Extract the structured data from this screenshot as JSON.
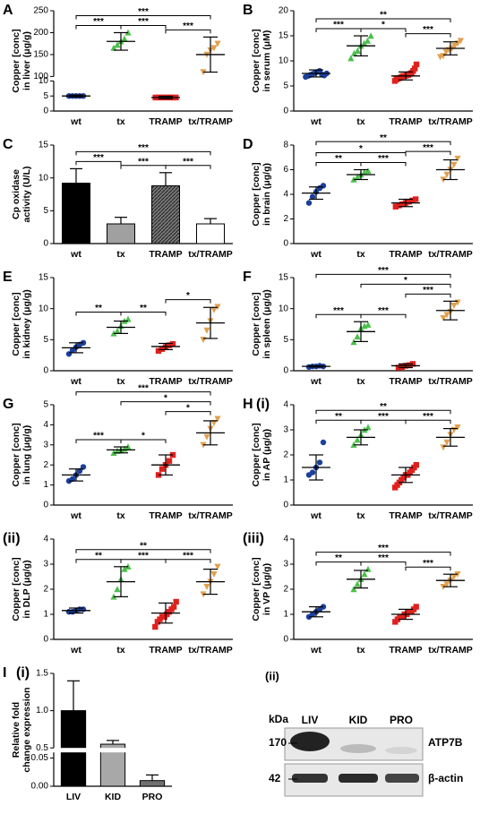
{
  "chart_data": [
    {
      "type": "dot",
      "label": "A",
      "ylabel": [
        "Copper [conc]",
        "in liver (μg/g)"
      ],
      "categories": [
        "wt",
        "tx",
        "TRAMP",
        "tx/TRAMP"
      ],
      "colors": [
        "#1c3f9c",
        "#4cbf4c",
        "#e0201c",
        "#e0a050"
      ],
      "markers": [
        "circle",
        "triangle",
        "square",
        "triangle-down"
      ],
      "points": [
        [
          5,
          5,
          5,
          5,
          5
        ],
        [
          165,
          172,
          180,
          186,
          200
        ],
        [
          4.5,
          4.5,
          4.5,
          4.5,
          4.5,
          4.5,
          4.5,
          4.5
        ],
        [
          110,
          150,
          160,
          165,
          175
        ]
      ],
      "means": [
        5,
        180,
        4.5,
        150
      ],
      "sds": [
        0.3,
        20,
        0.4,
        40
      ],
      "ylim": [
        0,
        250
      ],
      "ysegments": [
        [
          0,
          10
        ],
        [
          100,
          250
        ]
      ],
      "yticks": [
        0,
        5,
        10,
        100,
        150,
        200,
        250
      ],
      "brackets": [
        {
          "pair": [
            "wt",
            "tx"
          ],
          "label": "***"
        },
        {
          "pair": [
            "tx",
            "TRAMP"
          ],
          "label": "***"
        },
        {
          "pair": [
            "TRAMP",
            "tx/TRAMP"
          ],
          "label": "***"
        },
        {
          "pair": [
            "wt",
            "tx/TRAMP"
          ],
          "label": "***"
        }
      ]
    },
    {
      "type": "dot",
      "label": "B",
      "ylabel": [
        "Copper [conc]",
        "in serum (μM)"
      ],
      "categories": [
        "wt",
        "tx",
        "TRAMP",
        "tx/TRAMP"
      ],
      "colors": [
        "#1c3f9c",
        "#4cbf4c",
        "#e0201c",
        "#e0a050"
      ],
      "markers": [
        "circle",
        "triangle",
        "square",
        "triangle-down"
      ],
      "points": [
        [
          6.8,
          7,
          7.2,
          7.4,
          7.6,
          7.8,
          8,
          7.3,
          7.1,
          7.5
        ],
        [
          10.5,
          11.5,
          12,
          13,
          13.5,
          14,
          15
        ],
        [
          6,
          6.3,
          6.5,
          6.6,
          6.8,
          7,
          7,
          7.1,
          7.2,
          7.4,
          7.6,
          8,
          8.5,
          9.3
        ],
        [
          10.8,
          11,
          11.8,
          12.2,
          12.5,
          13,
          13.5,
          14
        ]
      ],
      "means": [
        7.5,
        13,
        7,
        12.5
      ],
      "sds": [
        0.7,
        2,
        0.8,
        1.3
      ],
      "ylim": [
        0,
        20
      ],
      "yticks": [
        0,
        5,
        10,
        15,
        20
      ],
      "brackets": [
        {
          "pair": [
            "wt",
            "tx"
          ],
          "label": "***"
        },
        {
          "pair": [
            "tx",
            "TRAMP"
          ],
          "label": "*"
        },
        {
          "pair": [
            "TRAMP",
            "tx/TRAMP"
          ],
          "label": "***"
        },
        {
          "pair": [
            "wt",
            "tx/TRAMP"
          ],
          "label": "**"
        }
      ]
    },
    {
      "type": "bar",
      "label": "C",
      "ylabel": [
        "Cp oxidase",
        "activity (U/L)"
      ],
      "categories": [
        "wt",
        "tx",
        "TRAMP",
        "tx/TRAMP"
      ],
      "fills": [
        "#000000",
        "#a0a0a0",
        "hatch",
        "#ffffff"
      ],
      "values": [
        9.2,
        3,
        8.8,
        3
      ],
      "sds": [
        2.2,
        1,
        2,
        0.8
      ],
      "ylim": [
        0,
        15
      ],
      "yticks": [
        0,
        5,
        10,
        15
      ],
      "brackets": [
        {
          "pair": [
            "wt",
            "tx"
          ],
          "label": "***"
        },
        {
          "pair": [
            "tx",
            "TRAMP"
          ],
          "label": "***"
        },
        {
          "pair": [
            "TRAMP",
            "tx/TRAMP"
          ],
          "label": "***"
        },
        {
          "pair": [
            "wt",
            "tx/TRAMP"
          ],
          "label": "***"
        }
      ]
    },
    {
      "type": "dot",
      "label": "D",
      "ylabel": [
        "Copper [conc]",
        "in brain (μg/g)"
      ],
      "categories": [
        "wt",
        "tx",
        "TRAMP",
        "tx/TRAMP"
      ],
      "colors": [
        "#1c3f9c",
        "#4cbf4c",
        "#e0201c",
        "#e0a050"
      ],
      "markers": [
        "circle",
        "triangle",
        "square",
        "triangle-down"
      ],
      "points": [
        [
          3.3,
          3.8,
          4.2,
          4.5,
          4.7
        ],
        [
          5.2,
          5.4,
          5.6,
          5.8,
          5.9
        ],
        [
          3,
          3.1,
          3.2,
          3.3,
          3.4,
          3.5,
          3.6
        ],
        [
          5.2,
          5.6,
          6,
          6.4,
          6.9
        ]
      ],
      "means": [
        4.1,
        5.6,
        3.3,
        6
      ],
      "sds": [
        0.5,
        0.4,
        0.3,
        0.8
      ],
      "ylim": [
        0,
        8
      ],
      "yticks": [
        0,
        2,
        4,
        6,
        8
      ],
      "brackets": [
        {
          "pair": [
            "wt",
            "tx"
          ],
          "label": "**"
        },
        {
          "pair": [
            "tx",
            "TRAMP"
          ],
          "label": "***"
        },
        {
          "pair": [
            "wt",
            "TRAMP"
          ],
          "label": "*"
        },
        {
          "pair": [
            "TRAMP",
            "tx/TRAMP"
          ],
          "label": "***"
        },
        {
          "pair": [
            "wt",
            "tx/TRAMP"
          ],
          "label": "**"
        }
      ]
    },
    {
      "type": "dot",
      "label": "E",
      "ylabel": [
        "Copper [conc]",
        "in kidney (μg/g)"
      ],
      "categories": [
        "wt",
        "tx",
        "TRAMP",
        "tx/TRAMP"
      ],
      "colors": [
        "#1c3f9c",
        "#4cbf4c",
        "#e0201c",
        "#e0a050"
      ],
      "markers": [
        "circle",
        "triangle",
        "square",
        "triangle-down"
      ],
      "points": [
        [
          2.7,
          3.3,
          3.8,
          4.2,
          4.5
        ],
        [
          6,
          6.4,
          7.2,
          8,
          8.3
        ],
        [
          3.2,
          3.5,
          3.8,
          4.1,
          4.3
        ],
        [
          5,
          6.5,
          8,
          9.8,
          10.3
        ]
      ],
      "means": [
        3.7,
        7,
        3.9,
        7.7
      ],
      "sds": [
        0.8,
        1,
        0.5,
        2.5
      ],
      "ylim": [
        0,
        15
      ],
      "yticks": [
        0,
        5,
        10,
        15
      ],
      "brackets": [
        {
          "pair": [
            "wt",
            "tx"
          ],
          "label": "**"
        },
        {
          "pair": [
            "tx",
            "TRAMP"
          ],
          "label": "**"
        },
        {
          "pair": [
            "TRAMP",
            "tx/TRAMP"
          ],
          "label": "*"
        }
      ]
    },
    {
      "type": "dot",
      "label": "F",
      "ylabel": [
        "Copper [conc]",
        "in spleen (μg/g)"
      ],
      "categories": [
        "wt",
        "tx",
        "TRAMP",
        "tx/TRAMP"
      ],
      "colors": [
        "#1c3f9c",
        "#4cbf4c",
        "#e0201c",
        "#e0a050"
      ],
      "markers": [
        "circle",
        "triangle",
        "square",
        "triangle-down"
      ],
      "points": [
        [
          0.6,
          0.7,
          0.7,
          0.8,
          0.7
        ],
        [
          4.6,
          5.5,
          6.8,
          7.2,
          7.4
        ],
        [
          0.5,
          0.6,
          0.8,
          0.9,
          1.1
        ],
        [
          8.5,
          9,
          9.5,
          10.5,
          11
        ]
      ],
      "means": [
        0.7,
        6.3,
        0.8,
        9.7
      ],
      "sds": [
        0.1,
        1.6,
        0.3,
        1.5
      ],
      "ylim": [
        0,
        15
      ],
      "yticks": [
        0,
        5,
        10,
        15
      ],
      "brackets": [
        {
          "pair": [
            "wt",
            "tx"
          ],
          "label": "***"
        },
        {
          "pair": [
            "tx",
            "TRAMP"
          ],
          "label": "***"
        },
        {
          "pair": [
            "TRAMP",
            "tx/TRAMP"
          ],
          "label": "***"
        },
        {
          "pair": [
            "tx",
            "tx/TRAMP"
          ],
          "label": "*"
        },
        {
          "pair": [
            "wt",
            "tx/TRAMP"
          ],
          "label": "***"
        }
      ]
    },
    {
      "type": "dot",
      "label": "G",
      "ylabel": [
        "Copper [conc]",
        "in lung (μg/g)"
      ],
      "categories": [
        "wt",
        "tx",
        "TRAMP",
        "tx/TRAMP"
      ],
      "colors": [
        "#1c3f9c",
        "#4cbf4c",
        "#e0201c",
        "#e0a050"
      ],
      "markers": [
        "circle",
        "triangle",
        "square",
        "triangle-down"
      ],
      "points": [
        [
          1.2,
          1.3,
          1.5,
          1.7,
          1.9
        ],
        [
          2.6,
          2.7,
          2.75,
          2.8,
          2.9
        ],
        [
          1.5,
          1.8,
          2,
          2.2,
          2.5
        ],
        [
          3,
          3.4,
          3.8,
          4.1,
          4.3
        ]
      ],
      "means": [
        1.5,
        2.75,
        2,
        3.6
      ],
      "sds": [
        0.3,
        0.15,
        0.5,
        0.6
      ],
      "ylim": [
        0,
        5
      ],
      "yticks": [
        0,
        1,
        2,
        3,
        4,
        5
      ],
      "brackets": [
        {
          "pair": [
            "wt",
            "tx"
          ],
          "label": "***"
        },
        {
          "pair": [
            "tx",
            "TRAMP"
          ],
          "label": "*"
        },
        {
          "pair": [
            "TRAMP",
            "tx/TRAMP"
          ],
          "label": "*"
        },
        {
          "pair": [
            "tx",
            "tx/TRAMP"
          ],
          "label": "*"
        },
        {
          "pair": [
            "wt",
            "tx/TRAMP"
          ],
          "label": "***"
        }
      ]
    },
    {
      "type": "dot",
      "label": "H",
      "sublabel": "(i)",
      "ylabel": [
        "Copper [conc]",
        "in AP (μg/g)"
      ],
      "categories": [
        "wt",
        "tx",
        "TRAMP",
        "tx/TRAMP"
      ],
      "colors": [
        "#1c3f9c",
        "#4cbf4c",
        "#e0201c",
        "#e0a050"
      ],
      "markers": [
        "circle",
        "triangle",
        "square",
        "triangle-down"
      ],
      "points": [
        [
          1.2,
          1.3,
          1.5,
          1.7,
          2.5
        ],
        [
          2.4,
          2.6,
          2.8,
          3,
          3.1
        ],
        [
          0.7,
          0.8,
          0.9,
          1,
          1.1,
          1.2,
          1.2,
          1.3,
          1.4,
          1.5,
          1.6
        ],
        [
          2.3,
          2.5,
          2.8,
          3,
          3.1
        ]
      ],
      "means": [
        1.5,
        2.7,
        1.2,
        2.7
      ],
      "sds": [
        0.5,
        0.3,
        0.3,
        0.35
      ],
      "ylim": [
        0,
        4
      ],
      "yticks": [
        0,
        1,
        2,
        3,
        4
      ],
      "brackets": [
        {
          "pair": [
            "wt",
            "tx"
          ],
          "label": "**"
        },
        {
          "pair": [
            "tx",
            "TRAMP"
          ],
          "label": "***"
        },
        {
          "pair": [
            "TRAMP",
            "tx/TRAMP"
          ],
          "label": "***"
        },
        {
          "pair": [
            "wt",
            "tx/TRAMP"
          ],
          "label": "**"
        }
      ]
    },
    {
      "type": "dot",
      "label": "(ii)",
      "ylabel": [
        "Copper [conc]",
        "in DLP (μg/g)"
      ],
      "categories": [
        "wt",
        "tx",
        "TRAMP",
        "tx/TRAMP"
      ],
      "colors": [
        "#1c3f9c",
        "#4cbf4c",
        "#e0201c",
        "#e0a050"
      ],
      "markers": [
        "circle",
        "triangle",
        "square",
        "triangle-down"
      ],
      "points": [
        [
          1.1,
          1.1,
          1.15,
          1.2,
          1.2
        ],
        [
          1.7,
          2,
          2.4,
          2.8,
          2.9
        ],
        [
          0.5,
          0.7,
          0.8,
          0.9,
          0.9,
          1,
          1.1,
          1.2,
          1.3,
          1.5
        ],
        [
          1.8,
          2.1,
          2.3,
          2.6,
          2.9
        ]
      ],
      "means": [
        1.15,
        2.3,
        1.05,
        2.3
      ],
      "sds": [
        0.1,
        0.6,
        0.4,
        0.5
      ],
      "ylim": [
        0,
        4
      ],
      "yticks": [
        0,
        1,
        2,
        3,
        4
      ],
      "brackets": [
        {
          "pair": [
            "wt",
            "tx"
          ],
          "label": "**"
        },
        {
          "pair": [
            "tx",
            "TRAMP"
          ],
          "label": "***"
        },
        {
          "pair": [
            "TRAMP",
            "tx/TRAMP"
          ],
          "label": "***"
        },
        {
          "pair": [
            "wt",
            "tx/TRAMP"
          ],
          "label": "**"
        }
      ]
    },
    {
      "type": "dot",
      "label": "(iii)",
      "ylabel": [
        "Copper [conc]",
        "in VP (μg/g)"
      ],
      "categories": [
        "wt",
        "tx",
        "TRAMP",
        "tx/TRAMP"
      ],
      "colors": [
        "#1c3f9c",
        "#4cbf4c",
        "#e0201c",
        "#e0a050"
      ],
      "markers": [
        "circle",
        "triangle",
        "square",
        "triangle-down"
      ],
      "points": [
        [
          0.9,
          1,
          1.1,
          1.2,
          1.3
        ],
        [
          2,
          2.2,
          2.4,
          2.6,
          2.8
        ],
        [
          0.7,
          0.8,
          0.9,
          0.9,
          1,
          1,
          1.1,
          1.1,
          1.2,
          1.3
        ],
        [
          2.1,
          2.2,
          2.35,
          2.5,
          2.6
        ]
      ],
      "means": [
        1.1,
        2.4,
        1,
        2.35
      ],
      "sds": [
        0.2,
        0.35,
        0.2,
        0.25
      ],
      "ylim": [
        0,
        4
      ],
      "yticks": [
        0,
        1,
        2,
        3,
        4
      ],
      "brackets": [
        {
          "pair": [
            "wt",
            "tx"
          ],
          "label": "**"
        },
        {
          "pair": [
            "tx",
            "TRAMP"
          ],
          "label": "***"
        },
        {
          "pair": [
            "TRAMP",
            "tx/TRAMP"
          ],
          "label": "***"
        },
        {
          "pair": [
            "wt",
            "tx/TRAMP"
          ],
          "label": "***"
        }
      ]
    },
    {
      "type": "bar",
      "label": "I",
      "sublabel": "(i)",
      "ylabel": [
        "Relative fold",
        "change expression"
      ],
      "categories": [
        "LIV",
        "KID",
        "PRO"
      ],
      "fills": [
        "#000000",
        "#a8a8a8",
        "#707070"
      ],
      "values": [
        1,
        0.55,
        0.01
      ],
      "sds": [
        0.4,
        0.05,
        0.01
      ],
      "ylim": [
        0,
        1.5
      ],
      "ysegments": [
        [
          0,
          0.06
        ],
        [
          0.5,
          1.5
        ]
      ],
      "yticks": [
        {
          "value": 0,
          "label": "0.00"
        },
        {
          "value": 0.05,
          "label": "0.05"
        },
        {
          "value": 0.5,
          "label": "0.5"
        },
        {
          "value": 1,
          "label": "1.0"
        },
        {
          "value": 1.5,
          "label": "1.5"
        }
      ]
    }
  ],
  "blot": {
    "label": "(ii)",
    "unit": "kDa",
    "lanes": [
      "LIV",
      "KID",
      "PRO"
    ],
    "rows": [
      {
        "marker": 170,
        "protein": "ATP7B"
      },
      {
        "marker": 42,
        "protein": "β-actin"
      }
    ]
  }
}
